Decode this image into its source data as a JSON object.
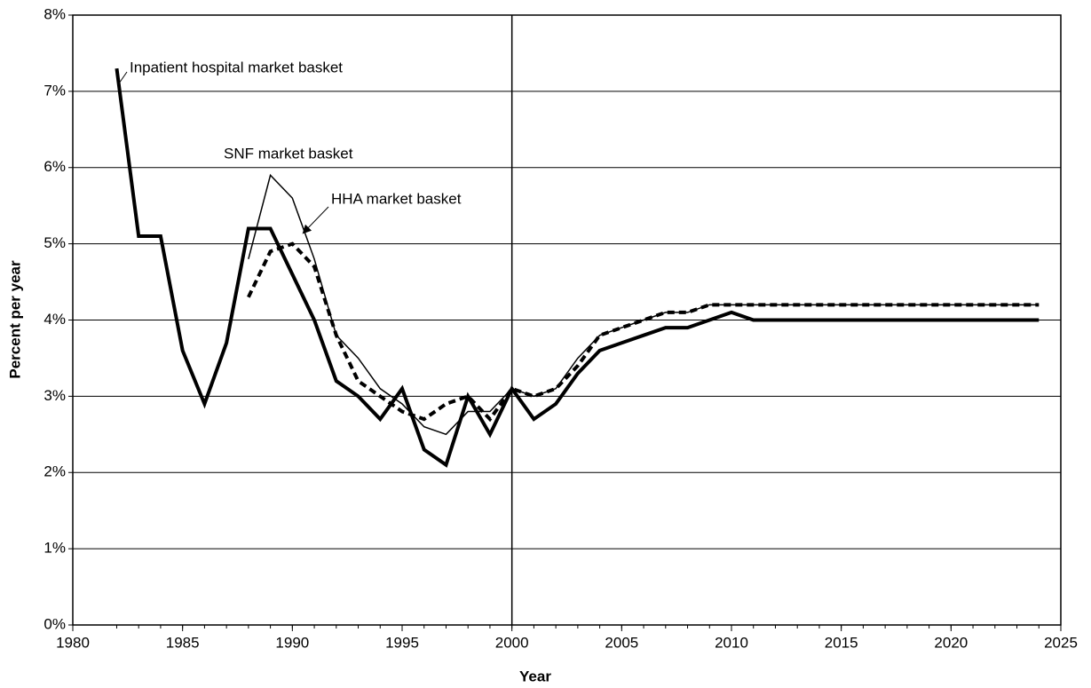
{
  "chart_data": {
    "type": "line",
    "x_label": "Year",
    "y_label": "Percent per year",
    "x": [
      1982,
      1983,
      1984,
      1985,
      1986,
      1987,
      1988,
      1989,
      1990,
      1991,
      1992,
      1993,
      1994,
      1995,
      1996,
      1997,
      1998,
      1999,
      2000,
      2001,
      2002,
      2003,
      2004,
      2005,
      2006,
      2007,
      2008,
      2009,
      2010,
      2011,
      2012,
      2013,
      2014,
      2015,
      2016,
      2017,
      2018,
      2019,
      2020,
      2021,
      2022,
      2023,
      2024
    ],
    "series": [
      {
        "name": "Inpatient hospital market basket",
        "color": "#000000",
        "width": 4,
        "dash": "none",
        "values": [
          7.3,
          5.1,
          5.1,
          3.6,
          2.9,
          3.7,
          5.2,
          5.2,
          4.6,
          4.0,
          3.2,
          3.0,
          2.7,
          3.1,
          2.3,
          2.1,
          3.0,
          2.5,
          3.1,
          2.7,
          2.9,
          3.3,
          3.6,
          3.7,
          3.8,
          3.9,
          3.9,
          4.0,
          4.1,
          4.0,
          4.0,
          4.0,
          4.0,
          4.0,
          4.0,
          4.0,
          4.0,
          4.0,
          4.0,
          4.0,
          4.0,
          4.0,
          4.0
        ]
      },
      {
        "name": "SNF market basket",
        "color": "#000000",
        "width": 1.5,
        "dash": "none",
        "values": [
          null,
          null,
          null,
          null,
          null,
          null,
          4.8,
          5.9,
          5.6,
          4.8,
          3.8,
          3.5,
          3.1,
          2.9,
          2.6,
          2.5,
          2.8,
          2.8,
          3.1,
          3.0,
          3.1,
          3.5,
          3.8,
          3.9,
          4.0,
          4.1,
          4.1,
          4.2,
          4.2,
          4.2,
          4.2,
          4.2,
          4.2,
          4.2,
          4.2,
          4.2,
          4.2,
          4.2,
          4.2,
          4.2,
          4.2,
          4.2,
          4.2
        ]
      },
      {
        "name": "HHA market basket",
        "color": "#000000",
        "width": 4,
        "dash": "8 5",
        "values": [
          null,
          null,
          null,
          null,
          null,
          null,
          4.3,
          4.9,
          5.0,
          4.7,
          3.8,
          3.2,
          3.0,
          2.8,
          2.7,
          2.9,
          3.0,
          2.7,
          3.1,
          3.0,
          3.1,
          3.4,
          3.8,
          3.9,
          4.0,
          4.1,
          4.1,
          4.2,
          4.2,
          4.2,
          4.2,
          4.2,
          4.2,
          4.2,
          4.2,
          4.2,
          4.2,
          4.2,
          4.2,
          4.2,
          4.2,
          4.2,
          4.2
        ]
      }
    ],
    "xlim": [
      1980,
      2025
    ],
    "xticks": [
      1980,
      1985,
      1990,
      1995,
      2000,
      2005,
      2010,
      2015,
      2020,
      2025
    ],
    "ylim": [
      0,
      8
    ],
    "yticks": [
      {
        "value": 0,
        "label": "0%"
      },
      {
        "value": 1,
        "label": "1%"
      },
      {
        "value": 2,
        "label": "2%"
      },
      {
        "value": 3,
        "label": "3%"
      },
      {
        "value": 4,
        "label": "4%"
      },
      {
        "value": 5,
        "label": "5%"
      },
      {
        "value": 6,
        "label": "6%"
      },
      {
        "value": 7,
        "label": "7%"
      },
      {
        "value": 8,
        "label": "8%"
      }
    ],
    "grid": true,
    "vline": 2000
  }
}
